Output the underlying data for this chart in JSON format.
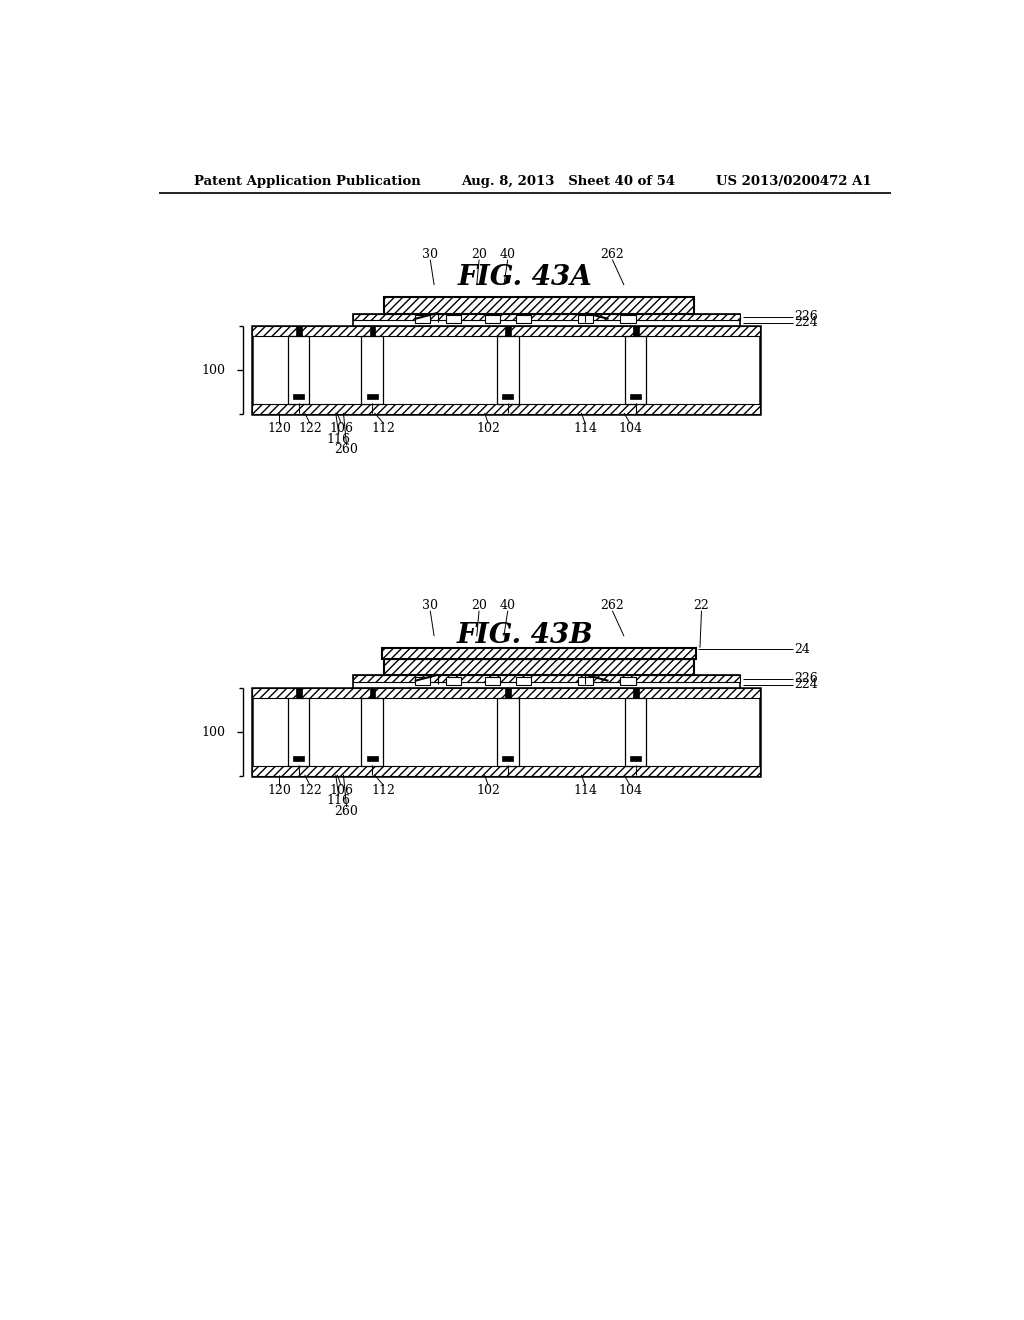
{
  "bg_color": "#ffffff",
  "header_left": "Patent Application Publication",
  "header_mid": "Aug. 8, 2013   Sheet 40 of 54",
  "header_right": "US 2013/0200472 A1",
  "fig_a_title": "FIG. 43A",
  "fig_b_title": "FIG. 43B",
  "label_fs": 9,
  "fig_title_fs": 20
}
